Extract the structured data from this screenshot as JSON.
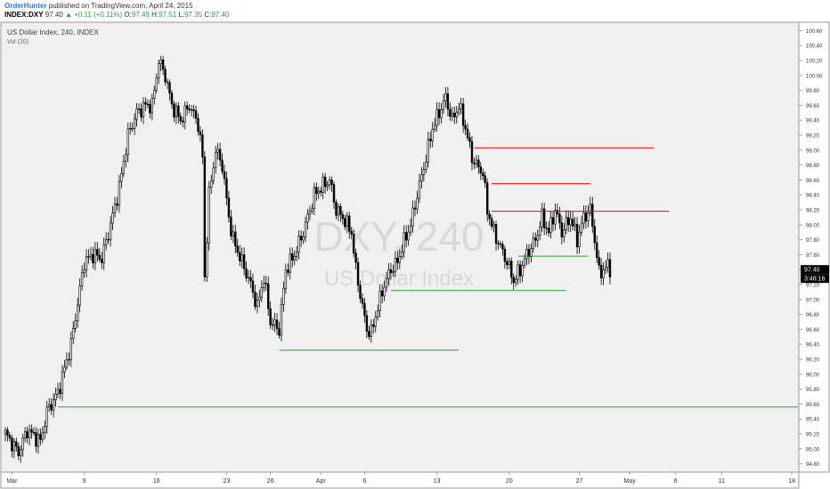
{
  "header": {
    "author": "OrderHunter",
    "published_text": " published on TradingView.com, April 24, 2015",
    "symbol": "INDEX:DXY",
    "last": "97.40",
    "change": "▲ +0.11 (+0.11%)",
    "o_label": "O:",
    "o": "97.49",
    "h_label": "H:",
    "h": "97.51",
    "l_label": "L:",
    "l": "97.35",
    "c_label": "C:",
    "c": "97.40"
  },
  "chart_data": {
    "type": "candlestick",
    "title": "US Dollar Index, 240, INDEX",
    "indicator": "Vol (20)",
    "watermark_symbol": "DXY, 240",
    "watermark_name": "US Dollar Index",
    "ylim": [
      94.7,
      100.7
    ],
    "y_ticks": [
      "100.60",
      "100.40",
      "100.20",
      "100.00",
      "99.80",
      "99.60",
      "99.40",
      "99.20",
      "99.00",
      "98.80",
      "98.60",
      "98.40",
      "98.20",
      "98.00",
      "97.80",
      "97.60",
      "97.40",
      "97.20",
      "97.00",
      "96.80",
      "96.60",
      "96.40",
      "96.20",
      "96.00",
      "95.80",
      "95.60",
      "95.40",
      "95.20",
      "95.00",
      "94.80"
    ],
    "x_ticks": [
      {
        "label": "Mar",
        "bar": 3
      },
      {
        "label": "9",
        "bar": 36
      },
      {
        "label": "16",
        "bar": 69
      },
      {
        "label": "23",
        "bar": 101
      },
      {
        "label": "26",
        "bar": 121
      },
      {
        "label": "Apr",
        "bar": 144
      },
      {
        "label": "6",
        "bar": 164
      },
      {
        "label": "13",
        "bar": 197
      },
      {
        "label": "20",
        "bar": 230
      },
      {
        "label": "27",
        "bar": 262
      },
      {
        "label": "May",
        "bar": 285
      },
      {
        "label": "6",
        "bar": 306
      },
      {
        "label": "11",
        "bar": 327
      },
      {
        "label": "18",
        "bar": 359
      }
    ],
    "price_label": "97.40",
    "countdown_label": "3:48:16",
    "price_color": "#000000",
    "bull_color": "#000000",
    "bear_color": "#000000",
    "support_color": "#2ca02c",
    "resistance_color": "#ff0000",
    "levels": [
      {
        "type": "resistance",
        "price": 99.03,
        "from_bar": 214,
        "to_bar": 296
      },
      {
        "type": "resistance",
        "price": 98.55,
        "from_bar": 222,
        "to_bar": 267
      },
      {
        "type": "resistance",
        "price": 98.18,
        "from_bar": 222,
        "to_bar": 303
      },
      {
        "type": "support",
        "price": 97.58,
        "from_bar": 234,
        "to_bar": 266
      },
      {
        "type": "support",
        "price": 97.12,
        "from_bar": 176,
        "to_bar": 256
      },
      {
        "type": "support",
        "price": 96.32,
        "from_bar": 125,
        "to_bar": 207
      },
      {
        "type": "support",
        "price": 95.56,
        "from_bar": 24,
        "to_bar": 380
      }
    ],
    "anchors": [
      [
        0,
        95.2
      ],
      [
        6,
        94.95
      ],
      [
        10,
        95.25
      ],
      [
        16,
        95.1
      ],
      [
        19,
        95.5
      ],
      [
        24,
        95.75
      ],
      [
        30,
        96.4
      ],
      [
        36,
        97.5
      ],
      [
        40,
        97.6
      ],
      [
        44,
        97.55
      ],
      [
        48,
        98.0
      ],
      [
        52,
        98.5
      ],
      [
        56,
        99.2
      ],
      [
        60,
        99.5
      ],
      [
        64,
        99.6
      ],
      [
        67,
        99.6
      ],
      [
        70,
        100.2
      ],
      [
        73,
        100.0
      ],
      [
        76,
        99.6
      ],
      [
        80,
        99.4
      ],
      [
        84,
        99.6
      ],
      [
        88,
        99.35
      ],
      [
        90,
        98.9
      ],
      [
        91,
        97.3
      ],
      [
        93,
        98.4
      ],
      [
        96,
        99.0
      ],
      [
        99,
        98.8
      ],
      [
        102,
        98.1
      ],
      [
        104,
        97.8
      ],
      [
        108,
        97.5
      ],
      [
        112,
        97.2
      ],
      [
        115,
        96.9
      ],
      [
        118,
        97.3
      ],
      [
        121,
        96.7
      ],
      [
        125,
        96.6
      ],
      [
        128,
        97.4
      ],
      [
        132,
        97.6
      ],
      [
        136,
        97.9
      ],
      [
        141,
        98.4
      ],
      [
        144,
        98.5
      ],
      [
        148,
        98.6
      ],
      [
        151,
        98.2
      ],
      [
        154,
        98.1
      ],
      [
        158,
        97.9
      ],
      [
        160,
        97.4
      ],
      [
        163,
        96.9
      ],
      [
        165,
        96.6
      ],
      [
        167,
        96.55
      ],
      [
        170,
        96.9
      ],
      [
        173,
        97.2
      ],
      [
        176,
        97.4
      ],
      [
        179,
        97.5
      ],
      [
        181,
        97.7
      ],
      [
        185,
        98.0
      ],
      [
        188,
        98.4
      ],
      [
        192,
        98.9
      ],
      [
        195,
        99.3
      ],
      [
        198,
        99.5
      ],
      [
        201,
        99.7
      ],
      [
        204,
        99.4
      ],
      [
        207,
        99.6
      ],
      [
        210,
        99.3
      ],
      [
        213,
        98.9
      ],
      [
        215,
        98.8
      ],
      [
        218,
        98.7
      ],
      [
        220,
        98.2
      ],
      [
        223,
        97.9
      ],
      [
        226,
        97.7
      ],
      [
        229,
        97.5
      ],
      [
        232,
        97.25
      ],
      [
        235,
        97.4
      ],
      [
        238,
        97.6
      ],
      [
        242,
        97.8
      ],
      [
        245,
        98.1
      ],
      [
        248,
        97.9
      ],
      [
        251,
        98.2
      ],
      [
        254,
        97.9
      ],
      [
        258,
        98.1
      ],
      [
        261,
        97.8
      ],
      [
        264,
        98.1
      ],
      [
        267,
        98.2
      ],
      [
        269,
        97.8
      ],
      [
        271,
        97.35
      ],
      [
        273,
        97.4
      ],
      [
        275,
        97.45
      ],
      [
        276,
        97.4
      ]
    ]
  }
}
